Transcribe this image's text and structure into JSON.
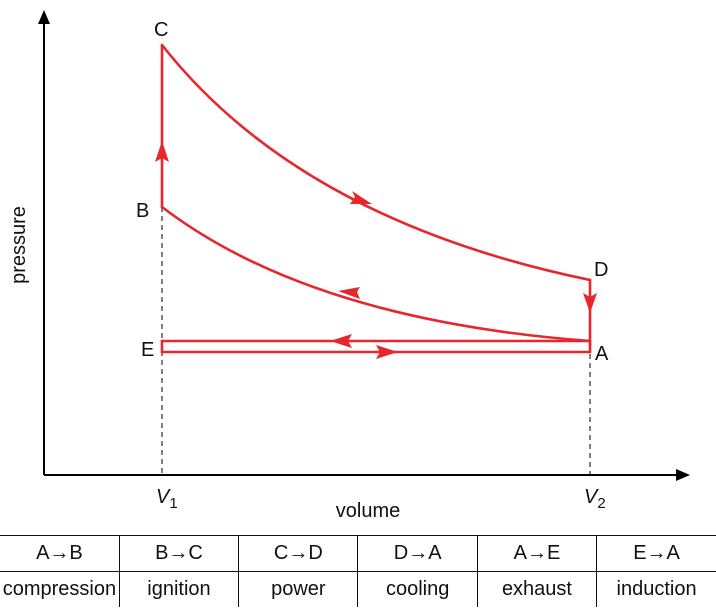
{
  "diagram": {
    "y_axis_label": "pressure",
    "x_axis_label": "volume",
    "x_ticks": [
      {
        "main": "V",
        "sub": "1"
      },
      {
        "main": "V",
        "sub": "2"
      }
    ],
    "points": {
      "A": "A",
      "B": "B",
      "C": "C",
      "D": "D",
      "E": "E"
    },
    "curve_color": "#e8262d",
    "axis_color": "#000000"
  },
  "table": {
    "processes": [
      {
        "transition": "A→B",
        "stage": "compression"
      },
      {
        "transition": "B→C",
        "stage": "ignition"
      },
      {
        "transition": "C→D",
        "stage": "power"
      },
      {
        "transition": "D→A",
        "stage": "cooling"
      },
      {
        "transition": "A→E",
        "stage": "exhaust"
      },
      {
        "transition": "E→A",
        "stage": "induction"
      }
    ]
  }
}
